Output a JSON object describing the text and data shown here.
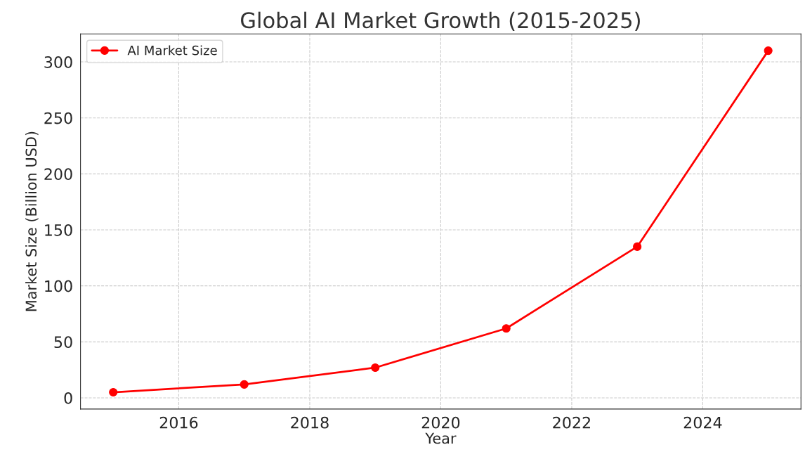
{
  "chart_data": {
    "type": "line",
    "title": "Global AI Market Growth (2015-2025)",
    "xlabel": "Year",
    "ylabel": "Market Size (Billion USD)",
    "x": [
      2015,
      2017,
      2019,
      2021,
      2023,
      2025
    ],
    "series": [
      {
        "name": "AI Market Size",
        "color": "#ff0000",
        "values": [
          5,
          12,
          27,
          62,
          135,
          310
        ]
      }
    ],
    "xlim": [
      2014.5,
      2025.5
    ],
    "xticks": [
      2016,
      2018,
      2020,
      2022,
      2024
    ],
    "ylim": [
      -10,
      325
    ],
    "yticks": [
      0,
      50,
      100,
      150,
      200,
      250,
      300
    ],
    "grid": true,
    "legend": "top left",
    "marker": "circle",
    "line_style": "solid"
  }
}
